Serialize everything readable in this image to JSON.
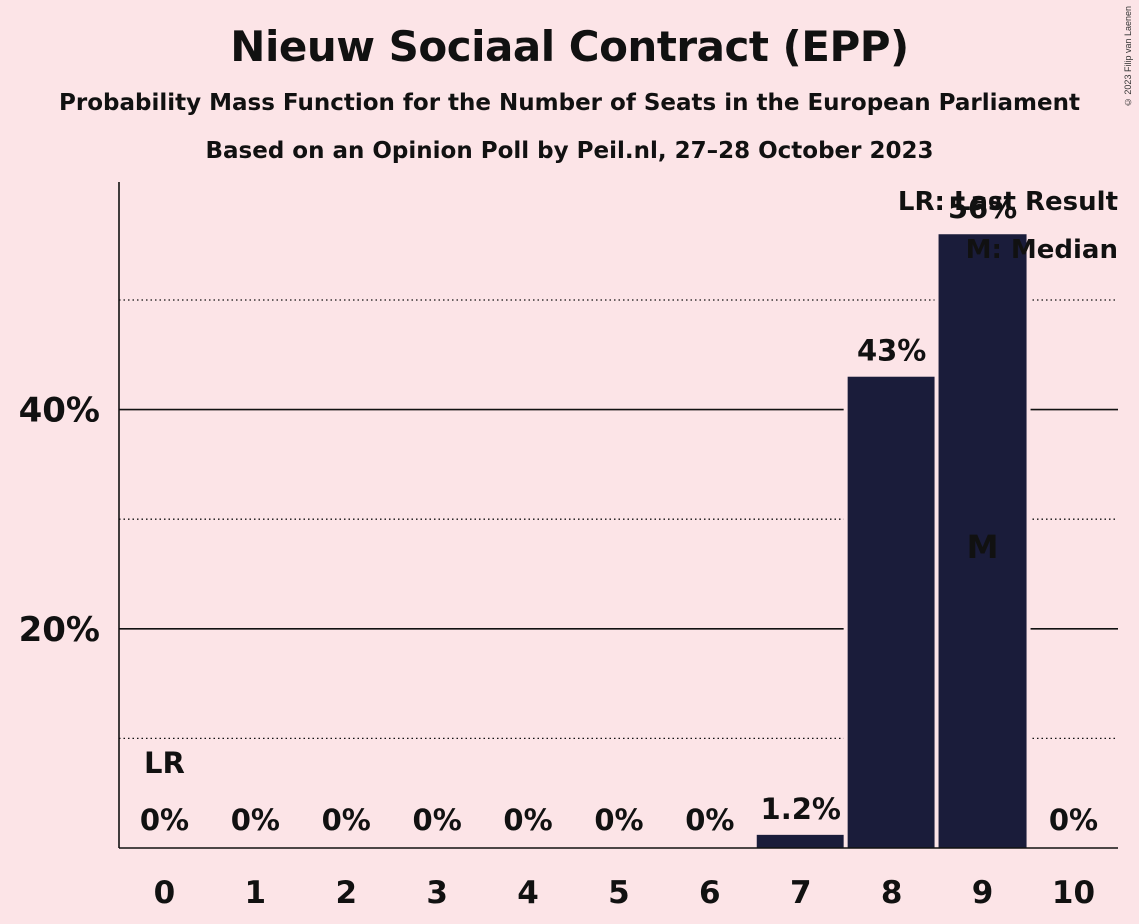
{
  "header": {
    "title": "Nieuw Sociaal Contract (EPP)",
    "subtitle": "Probability Mass Function for the Number of Seats in the European Parliament",
    "subtitle2": "Based on an Opinion Poll by Peil.nl, 27–28 October 2023",
    "copyright": "© 2023 Filip van Laenen"
  },
  "legend": {
    "lr": "LR: Last Result",
    "m": "M: Median"
  },
  "colors": {
    "background": "#fce4e7",
    "bar": "#1a1c3a",
    "text": "#111111"
  },
  "chart_data": {
    "type": "bar",
    "categories": [
      "0",
      "1",
      "2",
      "3",
      "4",
      "5",
      "6",
      "7",
      "8",
      "9",
      "10"
    ],
    "values": [
      0,
      0,
      0,
      0,
      0,
      0,
      0,
      1.2,
      43,
      56,
      0
    ],
    "bar_labels": [
      "0%",
      "0%",
      "0%",
      "0%",
      "0%",
      "0%",
      "0%",
      "1.2%",
      "43%",
      "56%",
      "0%"
    ],
    "ylim": [
      0,
      60
    ],
    "yticks": [
      {
        "value": 20,
        "label": "20%"
      },
      {
        "value": 40,
        "label": "40%"
      }
    ],
    "minor_gridlines": [
      10,
      30,
      50
    ],
    "last_result_index": 0,
    "last_result_label": "LR",
    "median_index": 9,
    "median_label": "M",
    "legend_position": "top-right",
    "xlabel": "",
    "ylabel": ""
  }
}
